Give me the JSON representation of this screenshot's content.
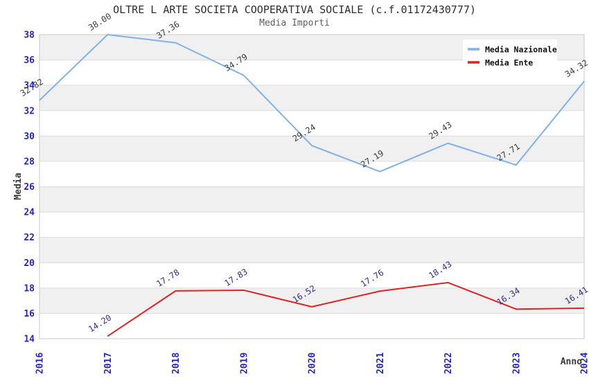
{
  "chart_data": {
    "type": "line",
    "title": "OLTRE L ARTE SOCIETA COOPERATIVA SOCIALE (c.f.01172430777)",
    "subtitle": "Media Importi",
    "xlabel": "Anno",
    "ylabel": "Media",
    "x": [
      2016,
      2017,
      2018,
      2019,
      2020,
      2021,
      2022,
      2023,
      2024
    ],
    "series": [
      {
        "name": "Media Nazionale",
        "color": "#7fb2e6",
        "label_color": "#3d3d3d",
        "x": [
          2016,
          2017,
          2018,
          2019,
          2020,
          2021,
          2022,
          2023,
          2024
        ],
        "values": [
          32.82,
          38.0,
          37.36,
          34.79,
          29.24,
          27.19,
          29.43,
          27.71,
          34.32
        ]
      },
      {
        "name": "Media Ente",
        "color": "#e02222",
        "label_color": "#30308f",
        "x": [
          2017,
          2018,
          2019,
          2020,
          2021,
          2022,
          2023,
          2024
        ],
        "values": [
          14.2,
          17.78,
          17.83,
          16.52,
          17.76,
          18.43,
          16.34,
          16.41
        ]
      }
    ],
    "ylim": [
      14,
      38
    ],
    "ytick_step": 2,
    "xlim": [
      2016,
      2024
    ],
    "legend_position": "top-right",
    "grid": true,
    "band_color": "#f0f0f0",
    "gridline_color": "#dcdcdc",
    "plot_border_color": "#c8c8c8",
    "tick_label_color": "#2323cc",
    "axis_label_color": "#3a3a3a",
    "legend_text_color": "#111111",
    "data_label_decimals": 2
  }
}
